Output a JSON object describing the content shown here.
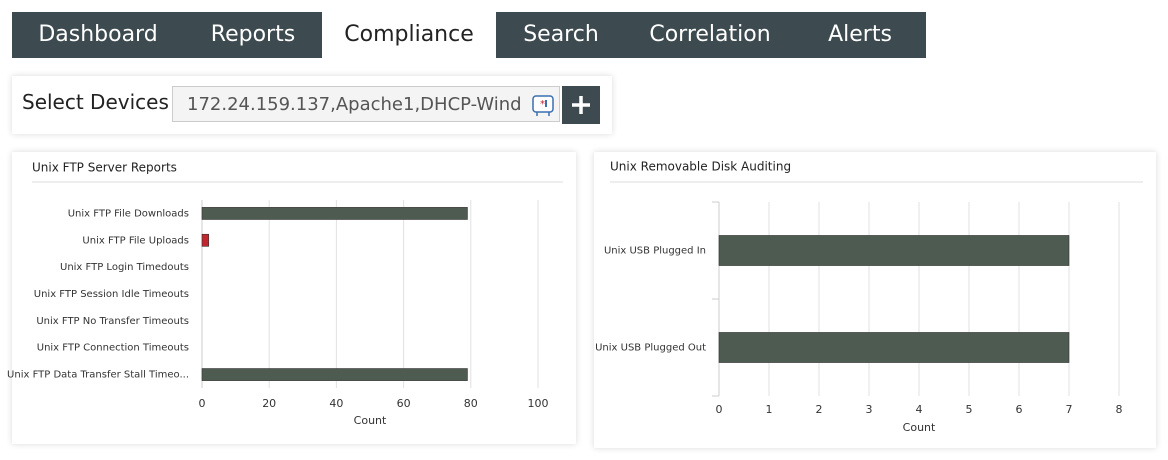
{
  "nav": {
    "tabs": [
      "Dashboard",
      "Reports",
      "Compliance",
      "Search",
      "Correlation",
      "Alerts"
    ],
    "active": "Compliance"
  },
  "device_selector": {
    "label": "Select Devices",
    "value": "172.24.159.137,Apache1,DHCP-Wind"
  },
  "chart_data": [
    {
      "type": "bar",
      "orientation": "horizontal",
      "title": "Unix FTP Server Reports",
      "categories": [
        "Unix FTP File Downloads",
        "Unix FTP File Uploads",
        "Unix FTP Login Timedouts",
        "Unix FTP Session Idle Timeouts",
        "Unix FTP No Transfer Timeouts",
        "Unix FTP Connection Timeouts",
        "Unix FTP Data Transfer Stall Timeo..."
      ],
      "values": [
        79,
        2,
        0,
        0,
        0,
        0,
        79
      ],
      "colors": [
        "#4e5b50",
        "#c1272d",
        "#4e5b50",
        "#4e5b50",
        "#4e5b50",
        "#4e5b50",
        "#4e5b50"
      ],
      "xlim": [
        0,
        100
      ],
      "xticks": [
        0,
        20,
        40,
        60,
        80,
        100
      ],
      "xlabel": "Count",
      "grid": true
    },
    {
      "type": "bar",
      "orientation": "horizontal",
      "title": "Unix Removable Disk Auditing",
      "categories": [
        "Unix USB Plugged In",
        "Unix USB Plugged Out"
      ],
      "values": [
        7,
        7
      ],
      "colors": [
        "#4e5b50",
        "#4e5b50"
      ],
      "xlim": [
        0,
        8
      ],
      "xticks": [
        0,
        1,
        2,
        3,
        4,
        5,
        6,
        7,
        8
      ],
      "xlabel": "Count",
      "grid": true
    }
  ]
}
